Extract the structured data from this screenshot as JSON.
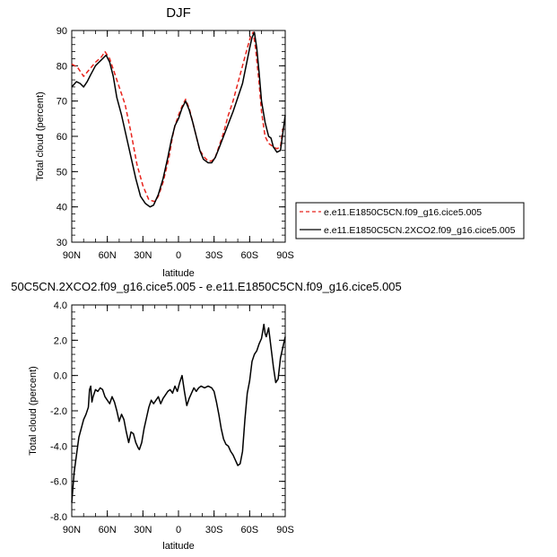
{
  "chart_data": [
    {
      "type": "line",
      "title": "DJF",
      "xlabel": "latitude",
      "ylabel": "Total cloud (percent)",
      "xlim": [
        -90,
        90
      ],
      "ylim": [
        30,
        90
      ],
      "xticks": [
        {
          "value": -90,
          "label": "90N"
        },
        {
          "value": -60,
          "label": "60N"
        },
        {
          "value": -30,
          "label": "30N"
        },
        {
          "value": 0,
          "label": "0"
        },
        {
          "value": 30,
          "label": "30S"
        },
        {
          "value": 60,
          "label": "60S"
        },
        {
          "value": 90,
          "label": "90S"
        }
      ],
      "yticks": [
        30,
        40,
        50,
        60,
        70,
        80,
        90
      ],
      "legend": {
        "placement": "right"
      },
      "series": [
        {
          "name": "e.e11.E1850C5CN.f09_g16.cice5.005",
          "color": "#e8231c",
          "dash": "dashed",
          "points": [
            [
              -90,
              80.5
            ],
            [
              -85,
              79.5
            ],
            [
              -80,
              77
            ],
            [
              -75,
              79
            ],
            [
              -70,
              81
            ],
            [
              -65,
              82.5
            ],
            [
              -62,
              84
            ],
            [
              -58,
              82
            ],
            [
              -55,
              79
            ],
            [
              -50,
              74
            ],
            [
              -45,
              69
            ],
            [
              -40,
              61
            ],
            [
              -35,
              52
            ],
            [
              -30,
              46
            ],
            [
              -25,
              42
            ],
            [
              -20,
              41.5
            ],
            [
              -17,
              43
            ],
            [
              -13,
              47
            ],
            [
              -8,
              54
            ],
            [
              -5,
              60
            ],
            [
              -3,
              63
            ],
            [
              0,
              66
            ],
            [
              3,
              68.5
            ],
            [
              6,
              70.5
            ],
            [
              9,
              68
            ],
            [
              12,
              64
            ],
            [
              15,
              60
            ],
            [
              18,
              56
            ],
            [
              22,
              54
            ],
            [
              25,
              53
            ],
            [
              28,
              53
            ],
            [
              31,
              54
            ],
            [
              34,
              57
            ],
            [
              38,
              61
            ],
            [
              42,
              66
            ],
            [
              46,
              70
            ],
            [
              50,
              75
            ],
            [
              54,
              80
            ],
            [
              58,
              85
            ],
            [
              61,
              88.5
            ],
            [
              63,
              89.5
            ],
            [
              65,
              85
            ],
            [
              68,
              75
            ],
            [
              70,
              67
            ],
            [
              73,
              60
            ],
            [
              76,
              58
            ],
            [
              80,
              57
            ],
            [
              83,
              56.5
            ],
            [
              86,
              57
            ],
            [
              88,
              62
            ],
            [
              90,
              63
            ]
          ]
        },
        {
          "name": "e.e11.E1850C5CN.2XCO2.f09_g16.cice5.005",
          "color": "#000000",
          "dash": "solid",
          "points": [
            [
              -90,
              74
            ],
            [
              -86,
              75.5
            ],
            [
              -83,
              75
            ],
            [
              -80,
              74
            ],
            [
              -77,
              75.5
            ],
            [
              -74,
              77.5
            ],
            [
              -70,
              80
            ],
            [
              -67,
              81
            ],
            [
              -64,
              82
            ],
            [
              -61,
              83
            ],
            [
              -58,
              81
            ],
            [
              -55,
              77
            ],
            [
              -52,
              71
            ],
            [
              -48,
              66
            ],
            [
              -44,
              60
            ],
            [
              -40,
              54
            ],
            [
              -36,
              48
            ],
            [
              -32,
              43
            ],
            [
              -28,
              41
            ],
            [
              -24,
              40
            ],
            [
              -21,
              40.5
            ],
            [
              -17,
              43.5
            ],
            [
              -13,
              48
            ],
            [
              -9,
              54
            ],
            [
              -6,
              59
            ],
            [
              -3,
              63
            ],
            [
              0,
              65
            ],
            [
              3,
              68
            ],
            [
              6,
              70
            ],
            [
              9,
              67.5
            ],
            [
              12,
              64
            ],
            [
              15,
              60
            ],
            [
              18,
              56
            ],
            [
              21,
              53.5
            ],
            [
              25,
              52.5
            ],
            [
              28,
              52.5
            ],
            [
              31,
              54
            ],
            [
              34,
              56.5
            ],
            [
              38,
              60
            ],
            [
              42,
              63.5
            ],
            [
              46,
              67
            ],
            [
              50,
              71
            ],
            [
              54,
              75
            ],
            [
              57,
              80
            ],
            [
              60,
              85
            ],
            [
              62,
              88
            ],
            [
              64,
              89.5
            ],
            [
              66,
              85
            ],
            [
              68,
              78
            ],
            [
              70,
              70
            ],
            [
              73,
              64
            ],
            [
              76,
              60
            ],
            [
              78,
              59.5
            ],
            [
              80,
              57
            ],
            [
              83,
              55.5
            ],
            [
              86,
              56
            ],
            [
              88,
              61
            ],
            [
              90,
              66
            ]
          ]
        }
      ]
    },
    {
      "type": "line",
      "title": "50C5CN.2XCO2.f09_g16.cice5.005 - e.e11.E1850C5CN.f09_g16.cice5.005",
      "xlabel": "latitude",
      "ylabel": "Total cloud (percent)",
      "xlim": [
        -90,
        90
      ],
      "ylim": [
        -8,
        4
      ],
      "xticks": [
        {
          "value": -90,
          "label": "90N"
        },
        {
          "value": -60,
          "label": "60N"
        },
        {
          "value": -30,
          "label": "30N"
        },
        {
          "value": 0,
          "label": "0"
        },
        {
          "value": 30,
          "label": "30S"
        },
        {
          "value": 60,
          "label": "60S"
        },
        {
          "value": 90,
          "label": "90S"
        }
      ],
      "yticks": [
        {
          "value": -8,
          "label": "-8.0"
        },
        {
          "value": -6,
          "label": "-6.0"
        },
        {
          "value": -4,
          "label": "-4.0"
        },
        {
          "value": -2,
          "label": "-2.0"
        },
        {
          "value": 0,
          "label": "0.0"
        },
        {
          "value": 2,
          "label": "2.0"
        },
        {
          "value": 4,
          "label": "4.0"
        }
      ],
      "series": [
        {
          "color": "#000000",
          "dash": "solid",
          "points": [
            [
              -90,
              -7.2
            ],
            [
              -88,
              -5.5
            ],
            [
              -86,
              -4.5
            ],
            [
              -84,
              -3.5
            ],
            [
              -82,
              -3
            ],
            [
              -80,
              -2.5
            ],
            [
              -78,
              -2.2
            ],
            [
              -76,
              -1.8
            ],
            [
              -75,
              -0.8
            ],
            [
              -74,
              -0.6
            ],
            [
              -73,
              -1.5
            ],
            [
              -72,
              -1.2
            ],
            [
              -70,
              -0.8
            ],
            [
              -68,
              -0.9
            ],
            [
              -66,
              -0.7
            ],
            [
              -64,
              -0.8
            ],
            [
              -62,
              -1.2
            ],
            [
              -60,
              -1.4
            ],
            [
              -58,
              -1.6
            ],
            [
              -56,
              -1.2
            ],
            [
              -54,
              -1.5
            ],
            [
              -52,
              -2
            ],
            [
              -50,
              -2.6
            ],
            [
              -48,
              -2.2
            ],
            [
              -46,
              -2.5
            ],
            [
              -44,
              -3.2
            ],
            [
              -42,
              -3.8
            ],
            [
              -40,
              -3.2
            ],
            [
              -38,
              -3.3
            ],
            [
              -36,
              -3.8
            ],
            [
              -34,
              -4.1
            ],
            [
              -33,
              -4.2
            ],
            [
              -31,
              -3.8
            ],
            [
              -29,
              -3
            ],
            [
              -27,
              -2.4
            ],
            [
              -25,
              -1.8
            ],
            [
              -23,
              -1.4
            ],
            [
              -21,
              -1.6
            ],
            [
              -19,
              -1.4
            ],
            [
              -17,
              -1.2
            ],
            [
              -15,
              -1.6
            ],
            [
              -13,
              -1.3
            ],
            [
              -11,
              -1.1
            ],
            [
              -9,
              -0.9
            ],
            [
              -7,
              -0.8
            ],
            [
              -5,
              -1
            ],
            [
              -3,
              -0.6
            ],
            [
              -1,
              -0.9
            ],
            [
              1,
              -0.4
            ],
            [
              3,
              0
            ],
            [
              5,
              -0.9
            ],
            [
              7,
              -1.7
            ],
            [
              9,
              -1.3
            ],
            [
              11,
              -1
            ],
            [
              13,
              -0.7
            ],
            [
              15,
              -0.9
            ],
            [
              17,
              -0.7
            ],
            [
              19,
              -0.6
            ],
            [
              22,
              -0.7
            ],
            [
              25,
              -0.6
            ],
            [
              28,
              -0.7
            ],
            [
              30,
              -0.9
            ],
            [
              32,
              -1.5
            ],
            [
              34,
              -2.2
            ],
            [
              36,
              -3
            ],
            [
              38,
              -3.6
            ],
            [
              40,
              -3.9
            ],
            [
              42,
              -4
            ],
            [
              44,
              -4.3
            ],
            [
              46,
              -4.5
            ],
            [
              48,
              -4.8
            ],
            [
              50,
              -5.1
            ],
            [
              52,
              -5
            ],
            [
              54,
              -4.3
            ],
            [
              56,
              -2.5
            ],
            [
              58,
              -1
            ],
            [
              60,
              -0.3
            ],
            [
              62,
              0.8
            ],
            [
              64,
              1.2
            ],
            [
              66,
              1.4
            ],
            [
              68,
              1.8
            ],
            [
              70,
              2.1
            ],
            [
              72,
              2.9
            ],
            [
              73,
              2.4
            ],
            [
              74,
              2.2
            ],
            [
              76,
              2.7
            ],
            [
              78,
              1.6
            ],
            [
              80,
              0.5
            ],
            [
              82,
              -0.4
            ],
            [
              84,
              -0.2
            ],
            [
              86,
              1
            ],
            [
              88,
              1.6
            ],
            [
              90,
              2.2
            ]
          ]
        }
      ]
    }
  ]
}
